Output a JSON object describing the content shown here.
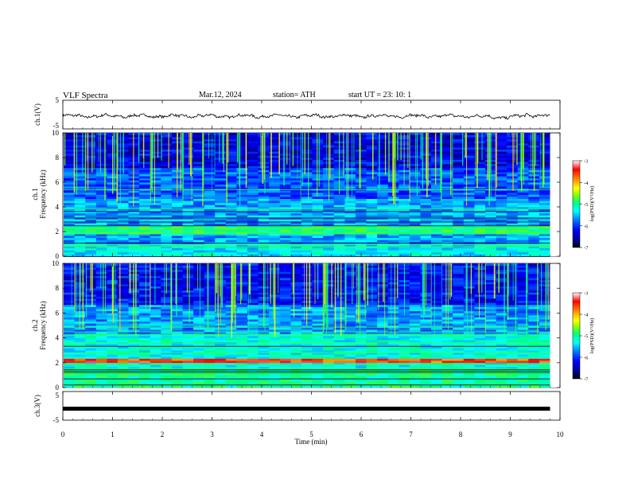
{
  "header": {
    "title": "VLF  Spectra",
    "date": "Mar.12, 2024",
    "station": "station= ATH",
    "start": "start  UT  =    23: 10: 1"
  },
  "chart_data": [
    {
      "type": "line",
      "name": "ch1-waveform",
      "ylabel": "ch.1(V)",
      "ylim": [
        -5,
        5
      ],
      "yticks": [
        "5",
        "-5"
      ],
      "xlim": [
        0,
        10
      ]
    },
    {
      "type": "heatmap",
      "name": "ch1-spectrogram",
      "ylabel": "ch.1\nFrequency (kHz)",
      "ylabel_line1": "ch.1",
      "ylabel_line2": "Frequency (kHz)",
      "xlim": [
        0,
        10
      ],
      "ylim": [
        0,
        10
      ],
      "yticks": [
        "0",
        "2",
        "4",
        "6",
        "8",
        "10"
      ],
      "data_end_min": 9.8,
      "colorbar": {
        "label": "log(PSD)(V²/Hz)",
        "range": [
          -7,
          -3
        ],
        "ticks": [
          "-3",
          "-4",
          "-5",
          "-6",
          "-7"
        ]
      }
    },
    {
      "type": "heatmap",
      "name": "ch2-spectrogram",
      "ylabel_line1": "ch.2",
      "ylabel_line2": "Frequency (kHz)",
      "xlim": [
        0,
        10
      ],
      "ylim": [
        0,
        10
      ],
      "yticks": [
        "0",
        "2",
        "4",
        "6",
        "8",
        "10"
      ],
      "data_end_min": 9.8,
      "colorbar": {
        "label": "log(PSD)(V²/Hz)",
        "range": [
          -7,
          -3
        ],
        "ticks": [
          "-3",
          "-4",
          "-5",
          "-6",
          "-7"
        ]
      }
    },
    {
      "type": "line",
      "name": "ch3-waveform",
      "ylabel": "ch.3(V)",
      "ylim": [
        -5,
        5
      ],
      "yticks": [
        "5",
        "-5"
      ],
      "xlim": [
        0,
        10
      ],
      "xlabel": "Time  (min)",
      "xticks": [
        "0",
        "1",
        "2",
        "3",
        "4",
        "5",
        "6",
        "7",
        "8",
        "9",
        "10"
      ],
      "level_v": -1.0
    }
  ],
  "colors": {
    "colormap": [
      "#000000",
      "#00008b",
      "#0000ff",
      "#0080ff",
      "#00ffff",
      "#00ff80",
      "#80ff00",
      "#ffff00",
      "#ff8000",
      "#ff0000",
      "#ffffff"
    ]
  }
}
